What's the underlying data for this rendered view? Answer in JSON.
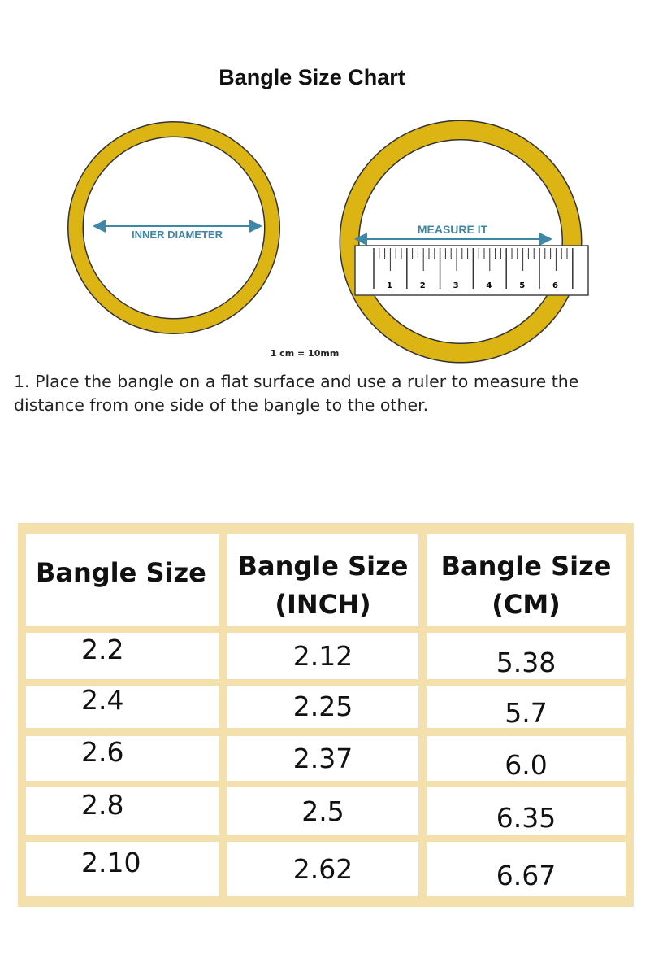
{
  "title": "Bangle Size Chart",
  "diagram": {
    "inner_label": "INNER DIAMETER",
    "measure_label": "MEASURE IT",
    "ruler_numbers": [
      "1",
      "2",
      "3",
      "4",
      "5",
      "6"
    ],
    "scale_note": "1 cm = 10mm",
    "ring_color": "#dcb414",
    "arrow_color": "#3f87a6"
  },
  "instruction": "1. Place the bangle on a flat surface and use a ruler to measure the distance from one side of the bangle to the other.",
  "table": {
    "headers": [
      "Bangle Size",
      "Bangle Size (INCH)",
      "Bangle Size (CM)"
    ],
    "rows": [
      [
        "2.2",
        "2.12",
        "5.38"
      ],
      [
        "2.4",
        "2.25",
        "5.7"
      ],
      [
        "2.6",
        "2.37",
        "6.0"
      ],
      [
        "2.8",
        "2.5",
        "6.35"
      ],
      [
        "2.10",
        "2.62",
        "6.67"
      ]
    ]
  }
}
